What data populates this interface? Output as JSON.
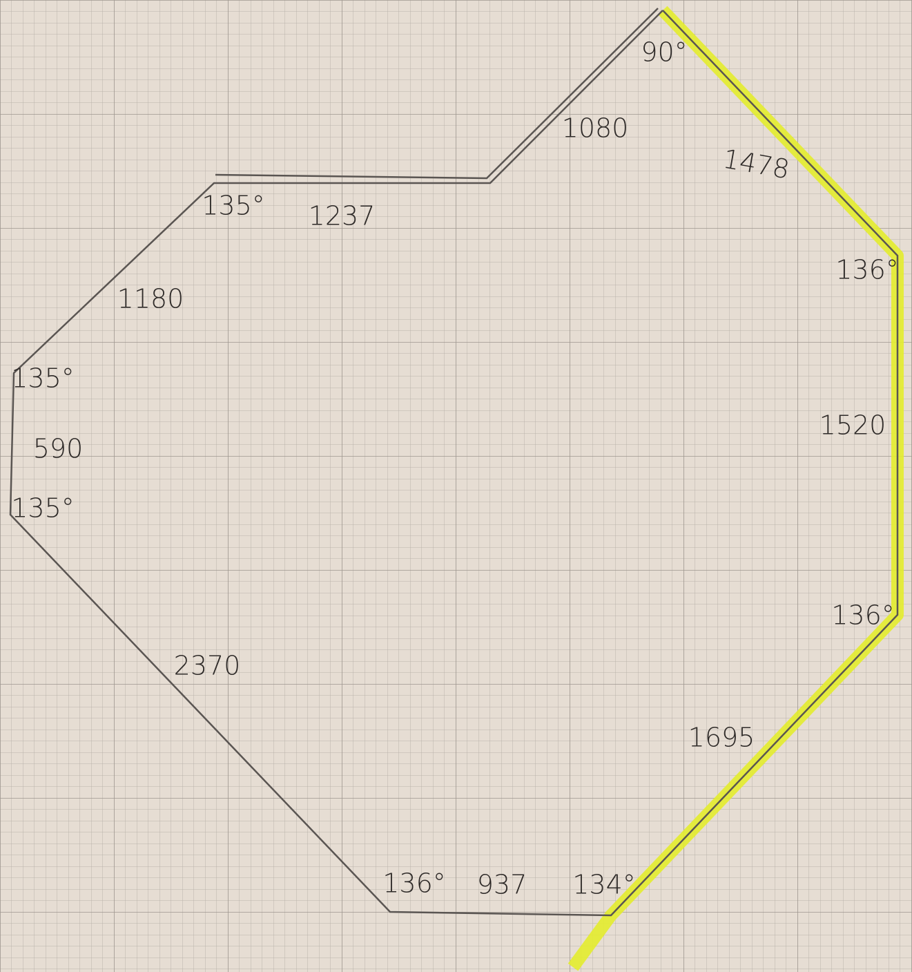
{
  "side_lengths": [
    "1080",
    "1478",
    "1520",
    "1695",
    "937",
    "2370",
    "590",
    "1180",
    "1237"
  ],
  "angles": [
    "90°",
    "136°",
    "136°",
    "134°",
    "136°",
    "135°",
    "135°",
    "135°"
  ]
}
